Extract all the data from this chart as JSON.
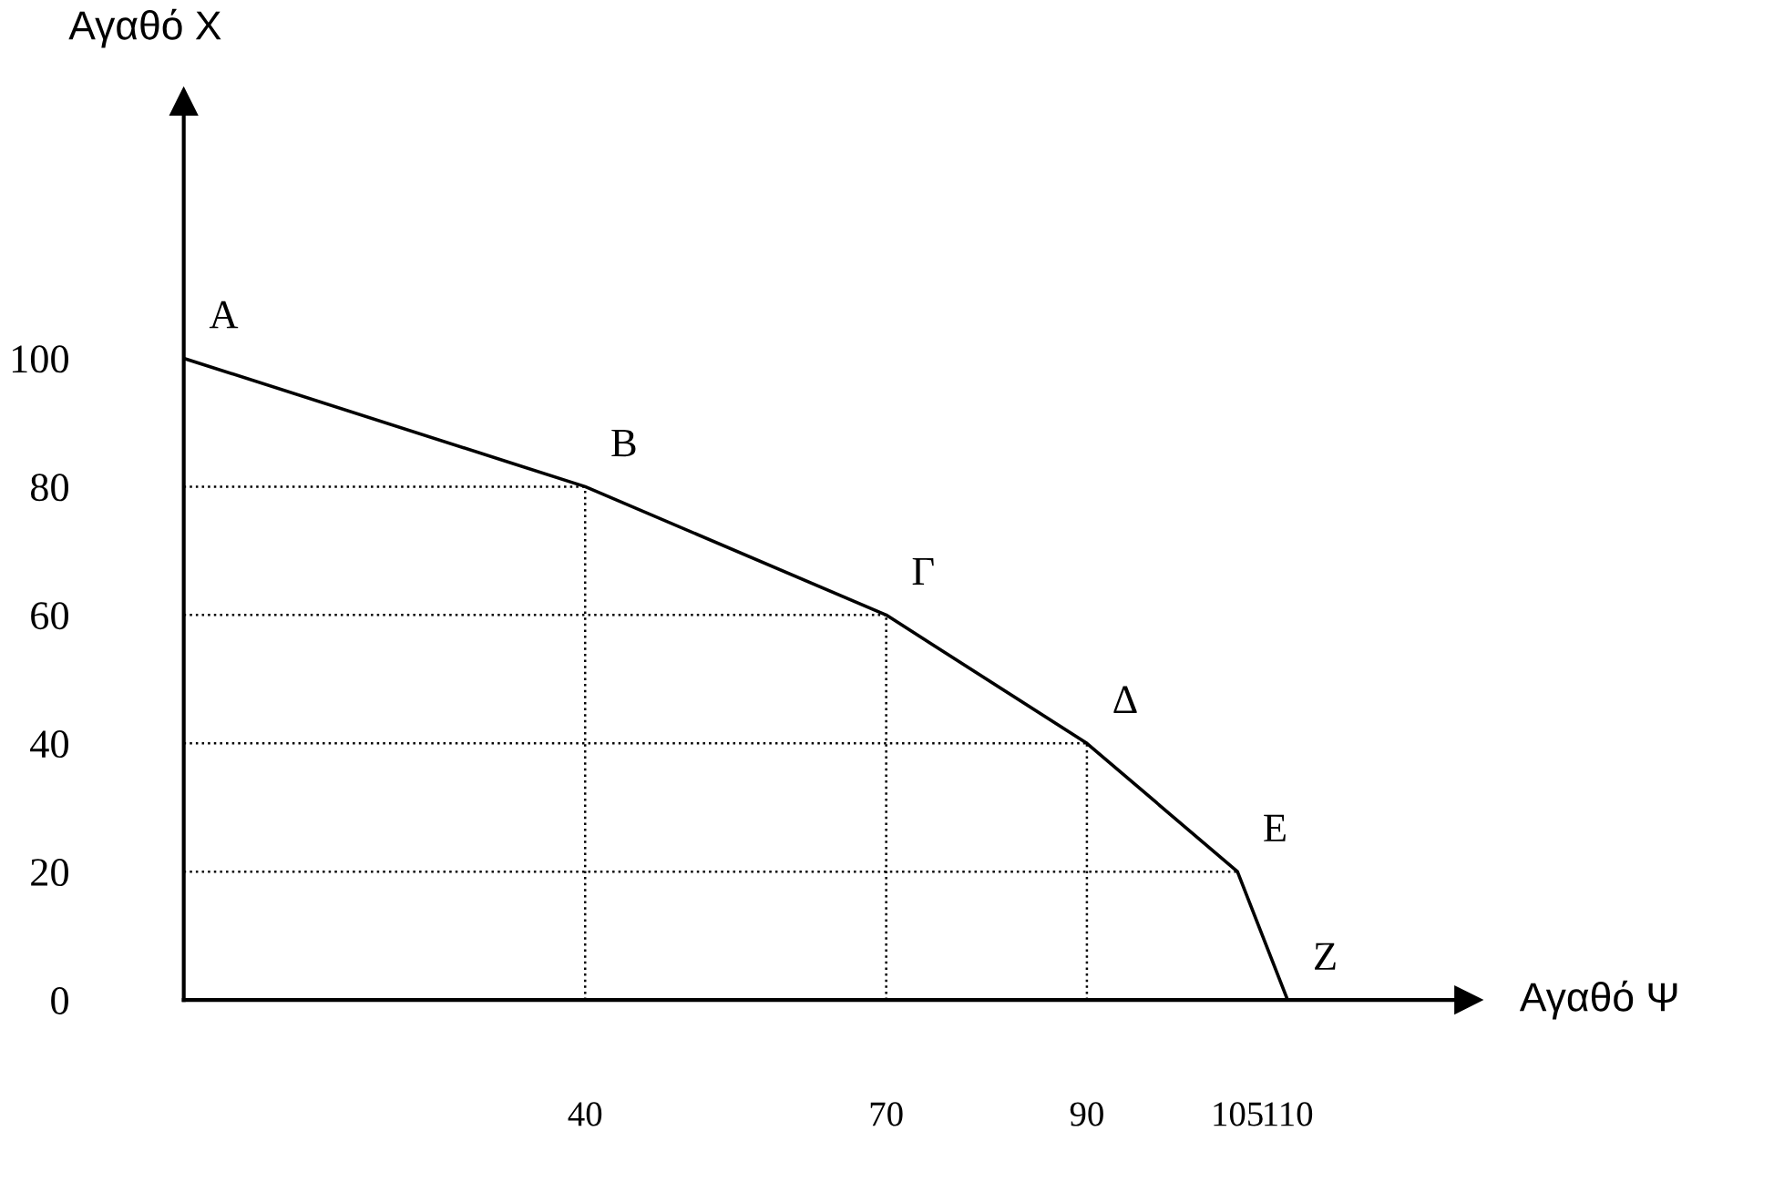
{
  "chart_data": {
    "type": "line",
    "xlabel": "Αγαθό Ψ",
    "ylabel": "Αγαθό Χ",
    "x": [
      0,
      40,
      70,
      90,
      105,
      110
    ],
    "series": [
      {
        "color": "#000000",
        "values": [
          100,
          80,
          60,
          40,
          20,
          0
        ]
      }
    ],
    "xlim": [
      0,
      128
    ],
    "ylim": [
      0,
      140
    ],
    "xticks": [
      40,
      70,
      90,
      105,
      110
    ],
    "yticks": [
      0,
      20,
      40,
      60,
      80,
      100
    ],
    "grid": false,
    "legend": false,
    "marker": "none",
    "line_style": "solid",
    "ref_lines": [
      {
        "axis": "x",
        "value": 40,
        "color": "#000000",
        "line_style": "dotted"
      },
      {
        "axis": "x",
        "value": 70,
        "color": "#000000",
        "line_style": "dotted"
      },
      {
        "axis": "x",
        "value": 90,
        "color": "#000000",
        "line_style": "dotted"
      },
      {
        "axis": "y",
        "value": 80,
        "color": "#000000",
        "line_style": "dotted"
      },
      {
        "axis": "y",
        "value": 60,
        "color": "#000000",
        "line_style": "dotted"
      },
      {
        "axis": "y",
        "value": 40,
        "color": "#000000",
        "line_style": "dotted"
      },
      {
        "axis": "y",
        "value": 20,
        "color": "#000000",
        "line_style": "dotted"
      }
    ],
    "annotations": [
      {
        "text": "A",
        "x": 0,
        "y": 100
      },
      {
        "text": "B",
        "x": 40,
        "y": 80
      },
      {
        "text": "Γ",
        "x": 70,
        "y": 60
      },
      {
        "text": "Δ",
        "x": 90,
        "y": 40
      },
      {
        "text": "E",
        "x": 105,
        "y": 20
      },
      {
        "text": "Z",
        "x": 110,
        "y": 0
      }
    ]
  }
}
